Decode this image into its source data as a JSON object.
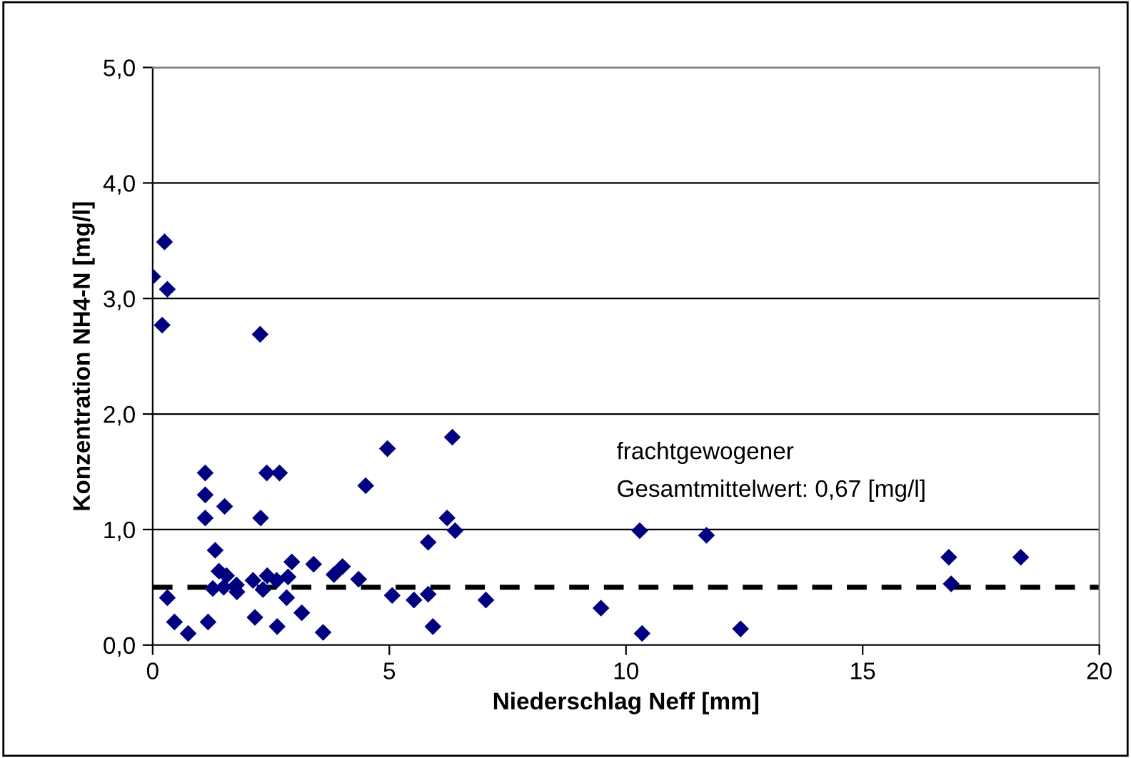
{
  "chart_data": {
    "type": "scatter",
    "xlabel": "Niederschlag Neff [mm]",
    "ylabel": "Konzentration NH4-N [mg/l]",
    "x": [
      0,
      0.25,
      0.31,
      0.2,
      2.27,
      1.11,
      1.11,
      1.11,
      1.52,
      2.41,
      2.68,
      2.28,
      4.5,
      4.96,
      6.33,
      6.22,
      6.39,
      5.82,
      1.32,
      1.4,
      1.56,
      1.77,
      1.27,
      1.5,
      1.78,
      2.12,
      2.33,
      2.42,
      2.62,
      2.86,
      2.94,
      2.83,
      3.4,
      3.83,
      4.01,
      4.35,
      5.06,
      5.52,
      5.82,
      7.04,
      0.31,
      0.46,
      0.75,
      1.17,
      2.16,
      2.63,
      3.15,
      3.6,
      5.92,
      9.47,
      10.29,
      10.34,
      11.7,
      12.42,
      16.82,
      16.87,
      18.34
    ],
    "series": [
      {
        "color": "#000080",
        "values": [
          3.19,
          3.49,
          3.08,
          2.77,
          2.69,
          1.49,
          1.3,
          1.1,
          1.2,
          1.49,
          1.49,
          1.1,
          1.38,
          1.7,
          1.8,
          1.1,
          0.99,
          0.89,
          0.82,
          0.64,
          0.6,
          0.52,
          0.49,
          0.5,
          0.46,
          0.56,
          0.48,
          0.6,
          0.56,
          0.59,
          0.72,
          0.41,
          0.7,
          0.61,
          0.68,
          0.57,
          0.43,
          0.39,
          0.44,
          0.39,
          0.41,
          0.2,
          0.1,
          0.2,
          0.24,
          0.16,
          0.28,
          0.11,
          0.16,
          0.32,
          0.99,
          0.1,
          0.95,
          0.14,
          0.76,
          0.53,
          0.76
        ]
      }
    ],
    "marker": "diamond",
    "xlim": [
      0,
      20
    ],
    "xticks": [
      0,
      5,
      10,
      15,
      20
    ],
    "ylim": [
      0,
      5
    ],
    "yticks": [
      {
        "value": 0,
        "label": "0,0"
      },
      {
        "value": 1,
        "label": "1,0"
      },
      {
        "value": 2,
        "label": "2,0"
      },
      {
        "value": 3,
        "label": "3,0"
      },
      {
        "value": 4,
        "label": "4,0"
      },
      {
        "value": 5,
        "label": "5,0"
      }
    ],
    "grid": "y",
    "ref_lines": [
      {
        "axis": "y",
        "value": 0.5,
        "color": "#000000",
        "line_style": "dashed"
      }
    ],
    "annotations": [
      "frachtgewogener\nGesamtmittelwert: 0,67 [mg/l]"
    ]
  }
}
